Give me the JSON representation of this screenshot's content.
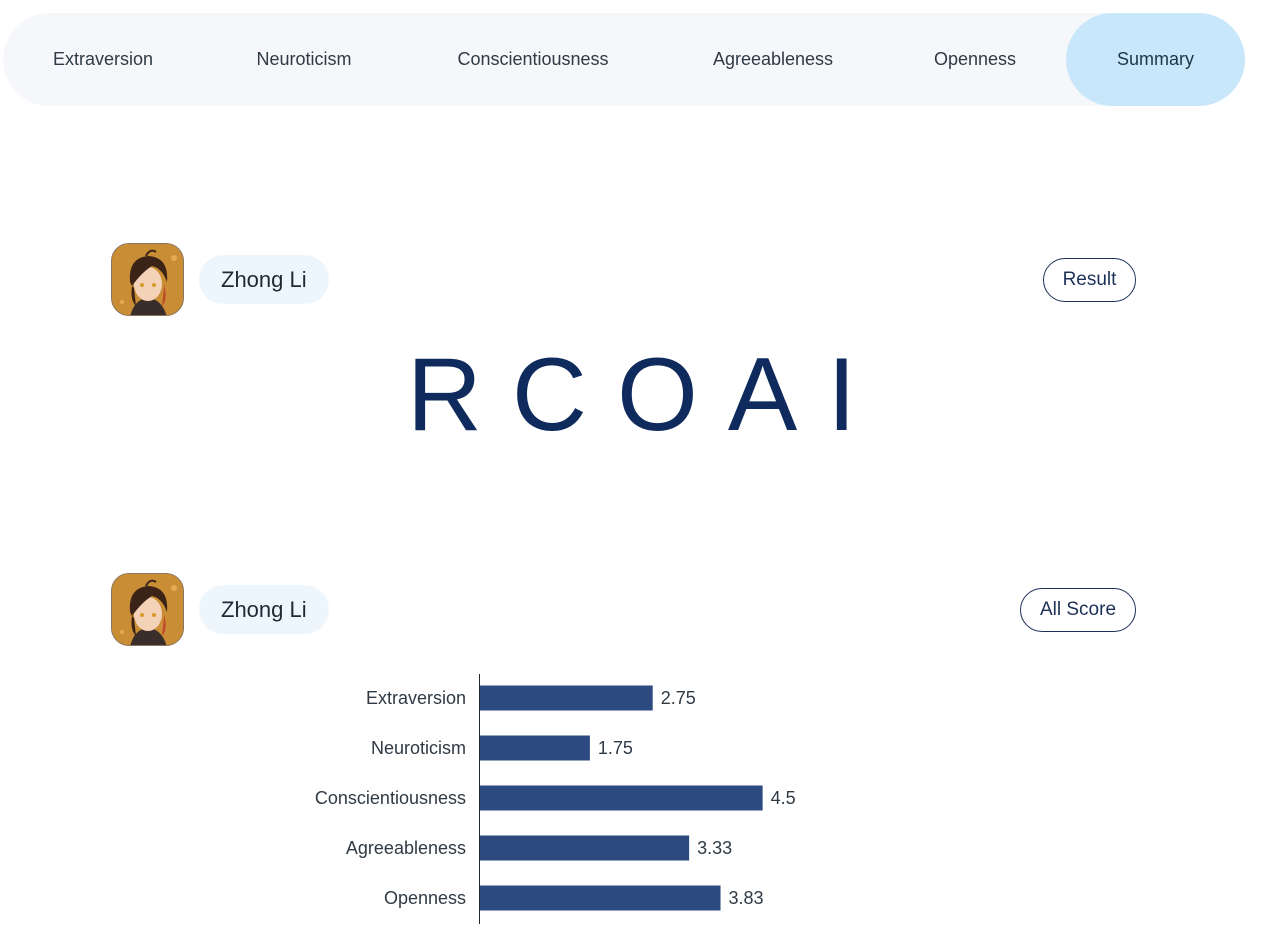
{
  "tabs": [
    {
      "label": "Extraversion",
      "active": false
    },
    {
      "label": "Neuroticism",
      "active": false
    },
    {
      "label": "Conscientiousness",
      "active": false
    },
    {
      "label": "Agreeableness",
      "active": false
    },
    {
      "label": "Openness",
      "active": false
    },
    {
      "label": "Summary",
      "active": true
    }
  ],
  "result_section": {
    "avatar_icon": "character-avatar-icon",
    "name": "Zhong Li",
    "button_label": "Result",
    "code": "RCOAI"
  },
  "score_section": {
    "avatar_icon": "character-avatar-icon",
    "name": "Zhong Li",
    "button_label": "All Score"
  },
  "colors": {
    "bar": "#2c4a80",
    "active_tab": "#c8e7fb",
    "tabbar": "#f5f7fa",
    "code_text": "#0f2a5c"
  },
  "chart_data": {
    "type": "bar",
    "orientation": "horizontal",
    "categories": [
      "Extraversion",
      "Neuroticism",
      "Conscientiousness",
      "Agreeableness",
      "Openness"
    ],
    "values": [
      2.75,
      1.75,
      4.5,
      3.33,
      3.83
    ],
    "value_labels": [
      "2.75",
      "1.75",
      "4.5",
      "3.33",
      "3.83"
    ],
    "xlim": [
      0,
      5
    ],
    "grid": false,
    "legend": "none"
  }
}
